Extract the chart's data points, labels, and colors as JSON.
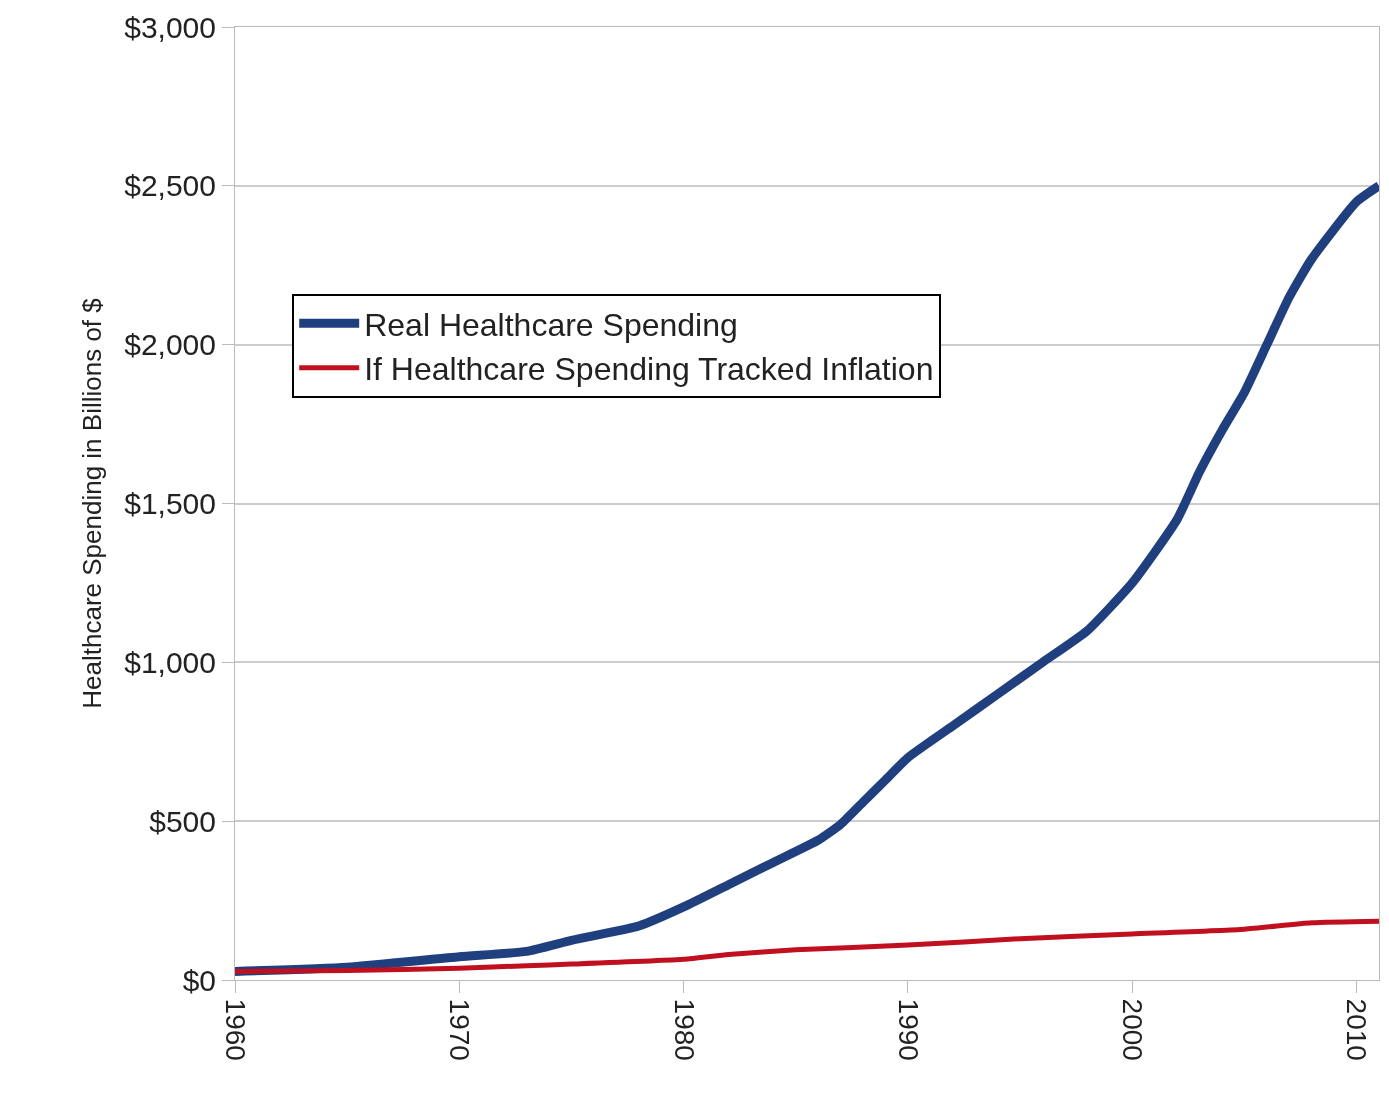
{
  "chart_data": {
    "type": "line",
    "ylabel": "Healthcare Spending in Billions of $",
    "xlim": [
      1960,
      2011
    ],
    "xticks": [
      1960,
      1970,
      1980,
      1990,
      2000,
      2010
    ],
    "ylim": [
      0,
      3000
    ],
    "yticks": [
      {
        "value": 0,
        "label": "$0"
      },
      {
        "value": 500,
        "label": "$500"
      },
      {
        "value": 1000,
        "label": "$1,000"
      },
      {
        "value": 1500,
        "label": "$1,500"
      },
      {
        "value": 2000,
        "label": "$2,000"
      },
      {
        "value": 2500,
        "label": "$2,500"
      },
      {
        "value": 3000,
        "label": "$3,000"
      }
    ],
    "grid": "y",
    "legend": "top left",
    "marker": "none",
    "series": [
      {
        "name": "Real Healthcare Spending",
        "color": "#1f3f7f",
        "x": [
          1960,
          1965,
          1970,
          1973,
          1975,
          1978,
          1980,
          1982,
          1984,
          1986,
          1987,
          1988,
          1989,
          1990,
          1992,
          1994,
          1996,
          1998,
          2000,
          2002,
          2003,
          2004,
          2005,
          2006,
          2007,
          2008,
          2010,
          2011
        ],
        "values": [
          27,
          40,
          73,
          90,
          125,
          170,
          230,
          300,
          370,
          440,
          490,
          560,
          630,
          700,
          800,
          900,
          1000,
          1100,
          1250,
          1450,
          1600,
          1730,
          1850,
          2000,
          2150,
          2270,
          2450,
          2500
        ]
      },
      {
        "name": "If Healthcare Spending Tracked Inflation",
        "color": "#c0101f",
        "x": [
          1960,
          1965,
          1970,
          1973,
          1975,
          1980,
          1982,
          1985,
          1990,
          1995,
          2000,
          2005,
          2008,
          2011
        ],
        "values": [
          27,
          30,
          37,
          45,
          50,
          65,
          80,
          95,
          110,
          130,
          145,
          160,
          180,
          185
        ]
      }
    ]
  }
}
